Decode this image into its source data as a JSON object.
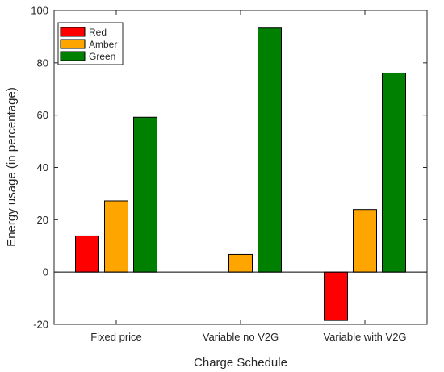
{
  "chart_data": {
    "type": "bar",
    "title": "",
    "xlabel": "Charge Schedule",
    "ylabel": "Energy usage (in percentage)",
    "categories": [
      "Fixed price",
      "Variable no V2G",
      "Variable with V2G"
    ],
    "ylim": [
      -20,
      100
    ],
    "yticks": [
      -20,
      0,
      20,
      40,
      60,
      80,
      100
    ],
    "grid": false,
    "legend_position": "top-left",
    "series": [
      {
        "name": "Red",
        "color": "#ff0000",
        "values": [
          13.8,
          0,
          -18.5
        ]
      },
      {
        "name": "Amber",
        "color": "#ffa500",
        "values": [
          27.2,
          6.7,
          23.9
        ]
      },
      {
        "name": "Green",
        "color": "#008000",
        "values": [
          59.2,
          93.3,
          76.1
        ]
      }
    ]
  }
}
